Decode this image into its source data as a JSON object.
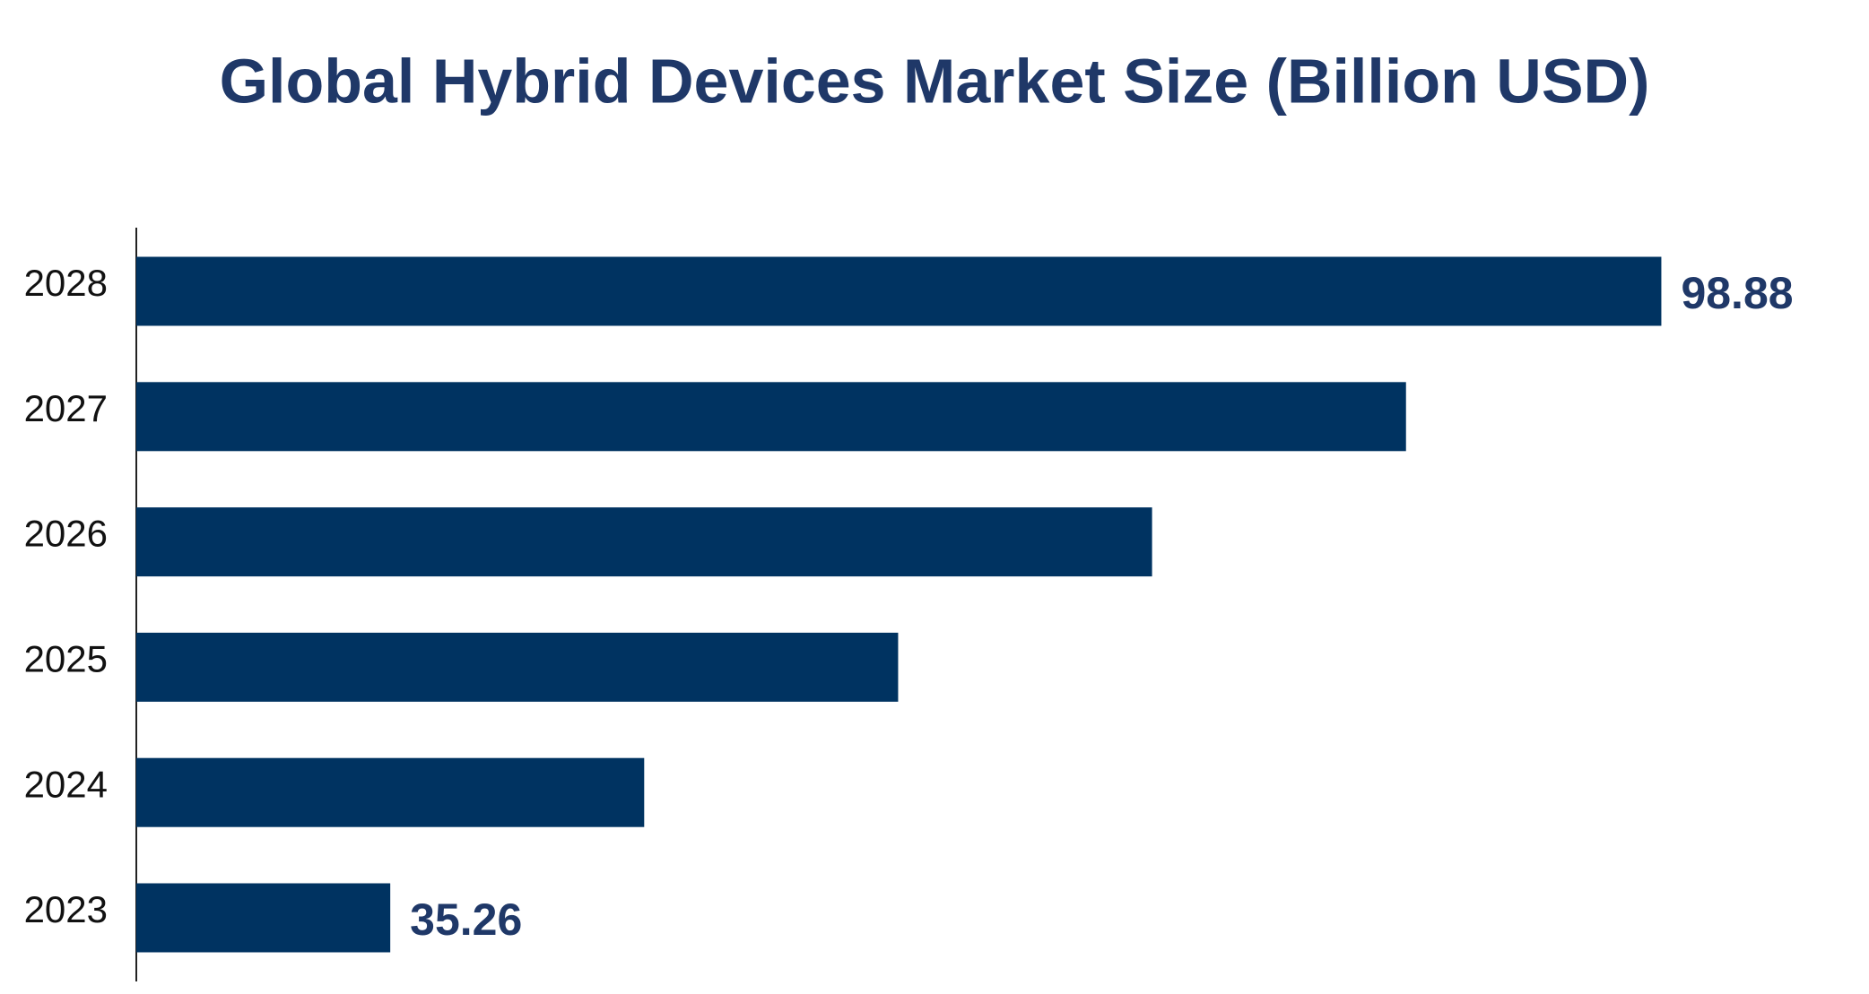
{
  "chart_data": {
    "type": "bar",
    "orientation": "horizontal",
    "title": "Global Hybrid Devices Market Size (Billion USD)",
    "categories": [
      "2023",
      "2024",
      "2025",
      "2026",
      "2027",
      "2028"
    ],
    "values": [
      35.26,
      47.97,
      60.68,
      73.39,
      86.1,
      98.88
    ],
    "value_labels": [
      "35.26",
      null,
      null,
      null,
      null,
      "98.88"
    ],
    "color": "#003361",
    "xlim": [
      22.55,
      106.85
    ]
  }
}
